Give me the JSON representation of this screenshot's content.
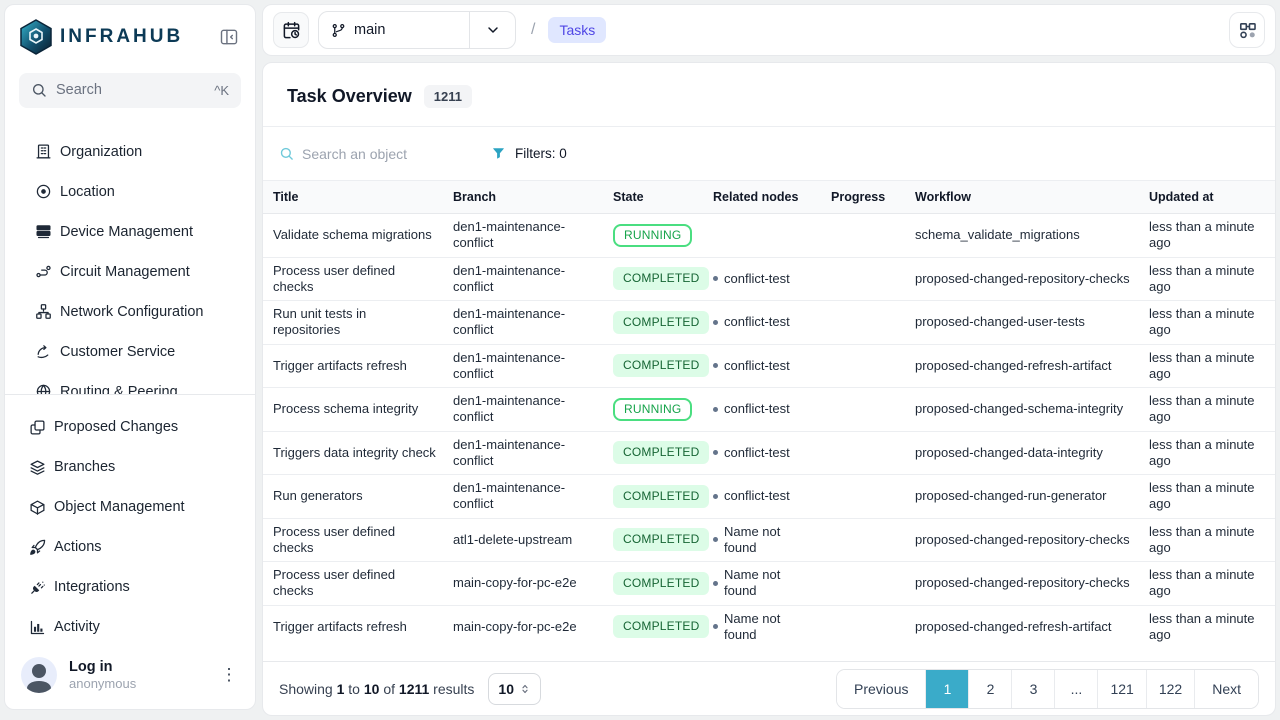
{
  "colors": {
    "accent_teal": "#3aabc9",
    "brand_navy": "#0c3a56",
    "breadcrumb_badge_bg": "#e0e7ff",
    "breadcrumb_badge_text": "#4f46e5",
    "completed_bg": "#dcfce7",
    "completed_text": "#166534",
    "running_border": "#4ade80",
    "running_text": "#16a34a"
  },
  "sidebar": {
    "logo_text": "INFRAHUB",
    "search": {
      "placeholder": "Search",
      "shortcut": "^K"
    },
    "menu": [
      {
        "label": "Organization",
        "icon": "organization-icon"
      },
      {
        "label": "Location",
        "icon": "location-icon"
      },
      {
        "label": "Device Management",
        "icon": "device-icon"
      },
      {
        "label": "Circuit Management",
        "icon": "circuit-icon"
      },
      {
        "label": "Network Configuration",
        "icon": "network-icon"
      },
      {
        "label": "Customer Service",
        "icon": "customer-service-icon"
      },
      {
        "label": "Routing & Peering",
        "icon": "routing-icon"
      }
    ],
    "bottom_menu": [
      {
        "label": "Proposed Changes",
        "icon": "proposed-changes-icon"
      },
      {
        "label": "Branches",
        "icon": "branches-icon"
      },
      {
        "label": "Object Management",
        "icon": "object-management-icon"
      },
      {
        "label": "Actions",
        "icon": "actions-icon"
      },
      {
        "label": "Integrations",
        "icon": "integrations-icon"
      },
      {
        "label": "Activity",
        "icon": "activity-icon"
      }
    ],
    "user": {
      "title": "Log in",
      "subtitle": "anonymous"
    }
  },
  "header": {
    "branch": "main",
    "breadcrumb_separator": "/",
    "breadcrumb": "Tasks"
  },
  "page": {
    "title": "Task Overview",
    "count": "1211",
    "search_placeholder": "Search an object",
    "filters_label": "Filters: 0"
  },
  "table": {
    "columns": [
      "Title",
      "Branch",
      "State",
      "Related nodes",
      "Progress",
      "Workflow",
      "Updated at"
    ],
    "rows": [
      {
        "title": "Validate schema migrations",
        "branch": "den1-maintenance-conflict",
        "state": "RUNNING",
        "related": "",
        "progress": "",
        "workflow": "schema_validate_migrations",
        "updated": "less than a minute ago"
      },
      {
        "title": "Process user defined checks",
        "branch": "den1-maintenance-conflict",
        "state": "COMPLETED",
        "related": "conflict-test",
        "progress": "",
        "workflow": "proposed-changed-repository-checks",
        "updated": "less than a minute ago"
      },
      {
        "title": "Run unit tests in repositories",
        "branch": "den1-maintenance-conflict",
        "state": "COMPLETED",
        "related": "conflict-test",
        "progress": "",
        "workflow": "proposed-changed-user-tests",
        "updated": "less than a minute ago"
      },
      {
        "title": "Trigger artifacts refresh",
        "branch": "den1-maintenance-conflict",
        "state": "COMPLETED",
        "related": "conflict-test",
        "progress": "",
        "workflow": "proposed-changed-refresh-artifact",
        "updated": "less than a minute ago"
      },
      {
        "title": "Process schema integrity",
        "branch": "den1-maintenance-conflict",
        "state": "RUNNING",
        "related": "conflict-test",
        "progress": "",
        "workflow": "proposed-changed-schema-integrity",
        "updated": "less than a minute ago"
      },
      {
        "title": "Triggers data integrity check",
        "branch": "den1-maintenance-conflict",
        "state": "COMPLETED",
        "related": "conflict-test",
        "progress": "",
        "workflow": "proposed-changed-data-integrity",
        "updated": "less than a minute ago"
      },
      {
        "title": "Run generators",
        "branch": "den1-maintenance-conflict",
        "state": "COMPLETED",
        "related": "conflict-test",
        "progress": "",
        "workflow": "proposed-changed-run-generator",
        "updated": "less than a minute ago"
      },
      {
        "title": "Process user defined checks",
        "branch": "atl1-delete-upstream",
        "state": "COMPLETED",
        "related": "Name not found",
        "progress": "",
        "workflow": "proposed-changed-repository-checks",
        "updated": "less than a minute ago"
      },
      {
        "title": "Process user defined checks",
        "branch": "main-copy-for-pc-e2e",
        "state": "COMPLETED",
        "related": "Name not found",
        "progress": "",
        "workflow": "proposed-changed-repository-checks",
        "updated": "less than a minute ago"
      },
      {
        "title": "Trigger artifacts refresh",
        "branch": "main-copy-for-pc-e2e",
        "state": "COMPLETED",
        "related": "Name not found",
        "progress": "",
        "workflow": "proposed-changed-refresh-artifact",
        "updated": "less than a minute ago"
      }
    ]
  },
  "footer": {
    "showing": {
      "pre": "Showing",
      "from": "1",
      "to_word": "to",
      "to": "10",
      "of_word": "of",
      "total": "1211",
      "suffix": "results"
    },
    "page_size": "10",
    "pagination": {
      "items": [
        "Previous",
        "1",
        "2",
        "3",
        "...",
        "121",
        "122",
        "Next"
      ],
      "active": "1"
    }
  }
}
